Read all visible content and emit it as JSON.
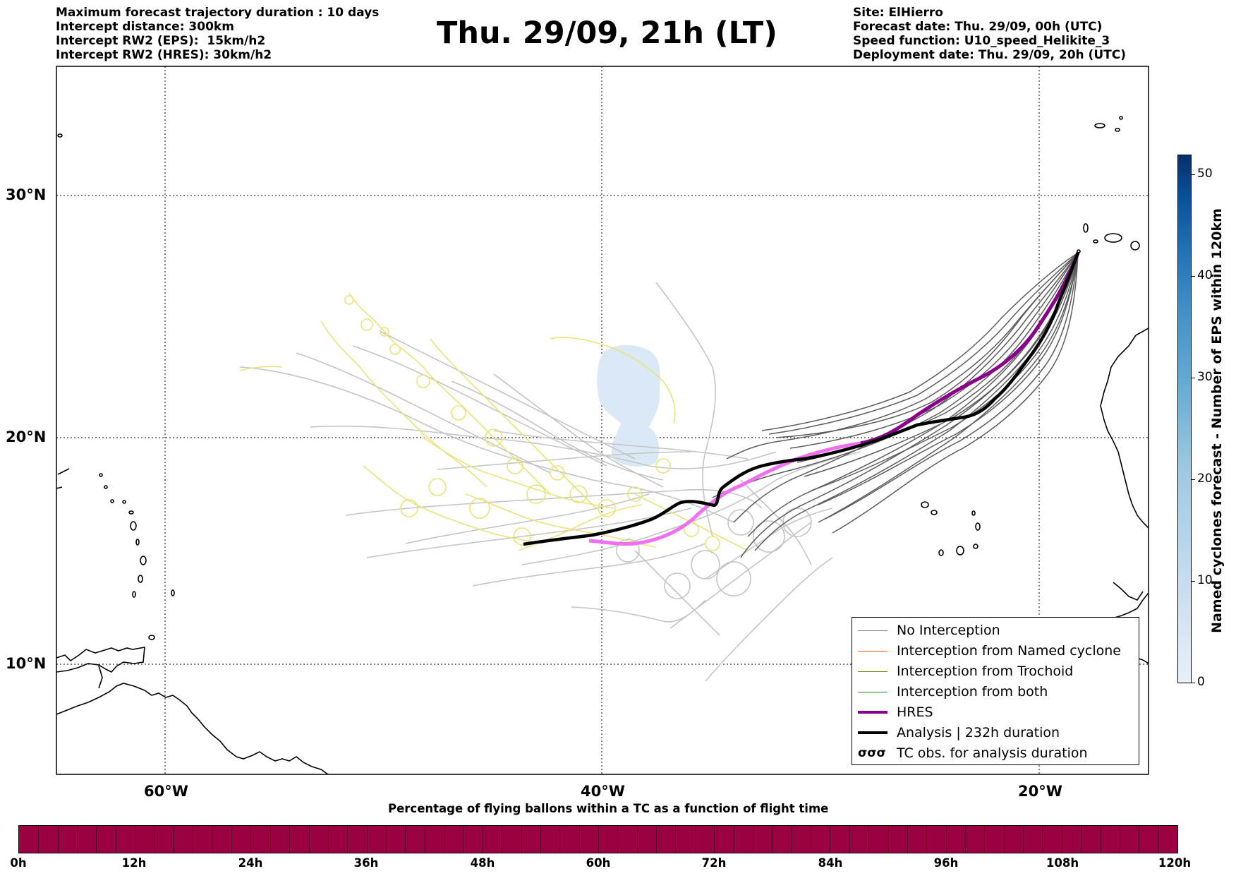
{
  "header": {
    "left_lines": [
      "Maximum forecast trajectory duration : 10 days",
      "Intercept distance: 300km",
      "Intercept RW2 (EPS):  15km/h2",
      "Intercept RW2 (HRES): 30km/h2"
    ],
    "title": "Thu. 29/09, 21h (LT)",
    "right_lines": [
      "Site: ElHierro",
      "Forecast date: Thu. 29/09, 00h (UTC)",
      "Speed function: U10_speed_Helikite_3",
      "Deployment date: Thu. 29/09, 20h (UTC)"
    ]
  },
  "map": {
    "lat_labels": [
      "30°N",
      "20°N",
      "10°N"
    ],
    "lon_labels": [
      "60°W",
      "40°W",
      "20°W"
    ]
  },
  "legend": {
    "items": [
      {
        "label": "No Interception",
        "color": "#7f7f7f"
      },
      {
        "label": "Interception from Named cyclone",
        "color": "#ff5a1e"
      },
      {
        "label": "Interception from Trochoid",
        "color": "#808000"
      },
      {
        "label": "Interception from both",
        "color": "#1f8f1f"
      },
      {
        "label": "HRES",
        "color": "#8b008b"
      },
      {
        "label": "Analysis | 232h duration",
        "color": "#000000"
      },
      {
        "label": "TC obs. for analysis duration",
        "symbol": "σσσ"
      }
    ]
  },
  "colorbar": {
    "title": "Named cyclones forecast - Number of EPS within 120km",
    "ticks": [
      "0",
      "10",
      "20",
      "30",
      "40",
      "50"
    ]
  },
  "bottom": {
    "caption": "Percentage of flying ballons within a TC as a function of flight time",
    "ticks": [
      "0h",
      "12h",
      "24h",
      "36h",
      "48h",
      "60h",
      "72h",
      "84h",
      "96h",
      "108h",
      "120h"
    ],
    "bar_color": "#9b0040"
  },
  "colors": {
    "ensemble_gray": "#5c5c5c",
    "light_gray": "#c4c4c4",
    "yellow": "#e9e37a",
    "hres_pink": "#f06ef0",
    "hres_purple": "#8b008b",
    "analysis": "#000000",
    "tc_density": "#dbe8f5"
  }
}
